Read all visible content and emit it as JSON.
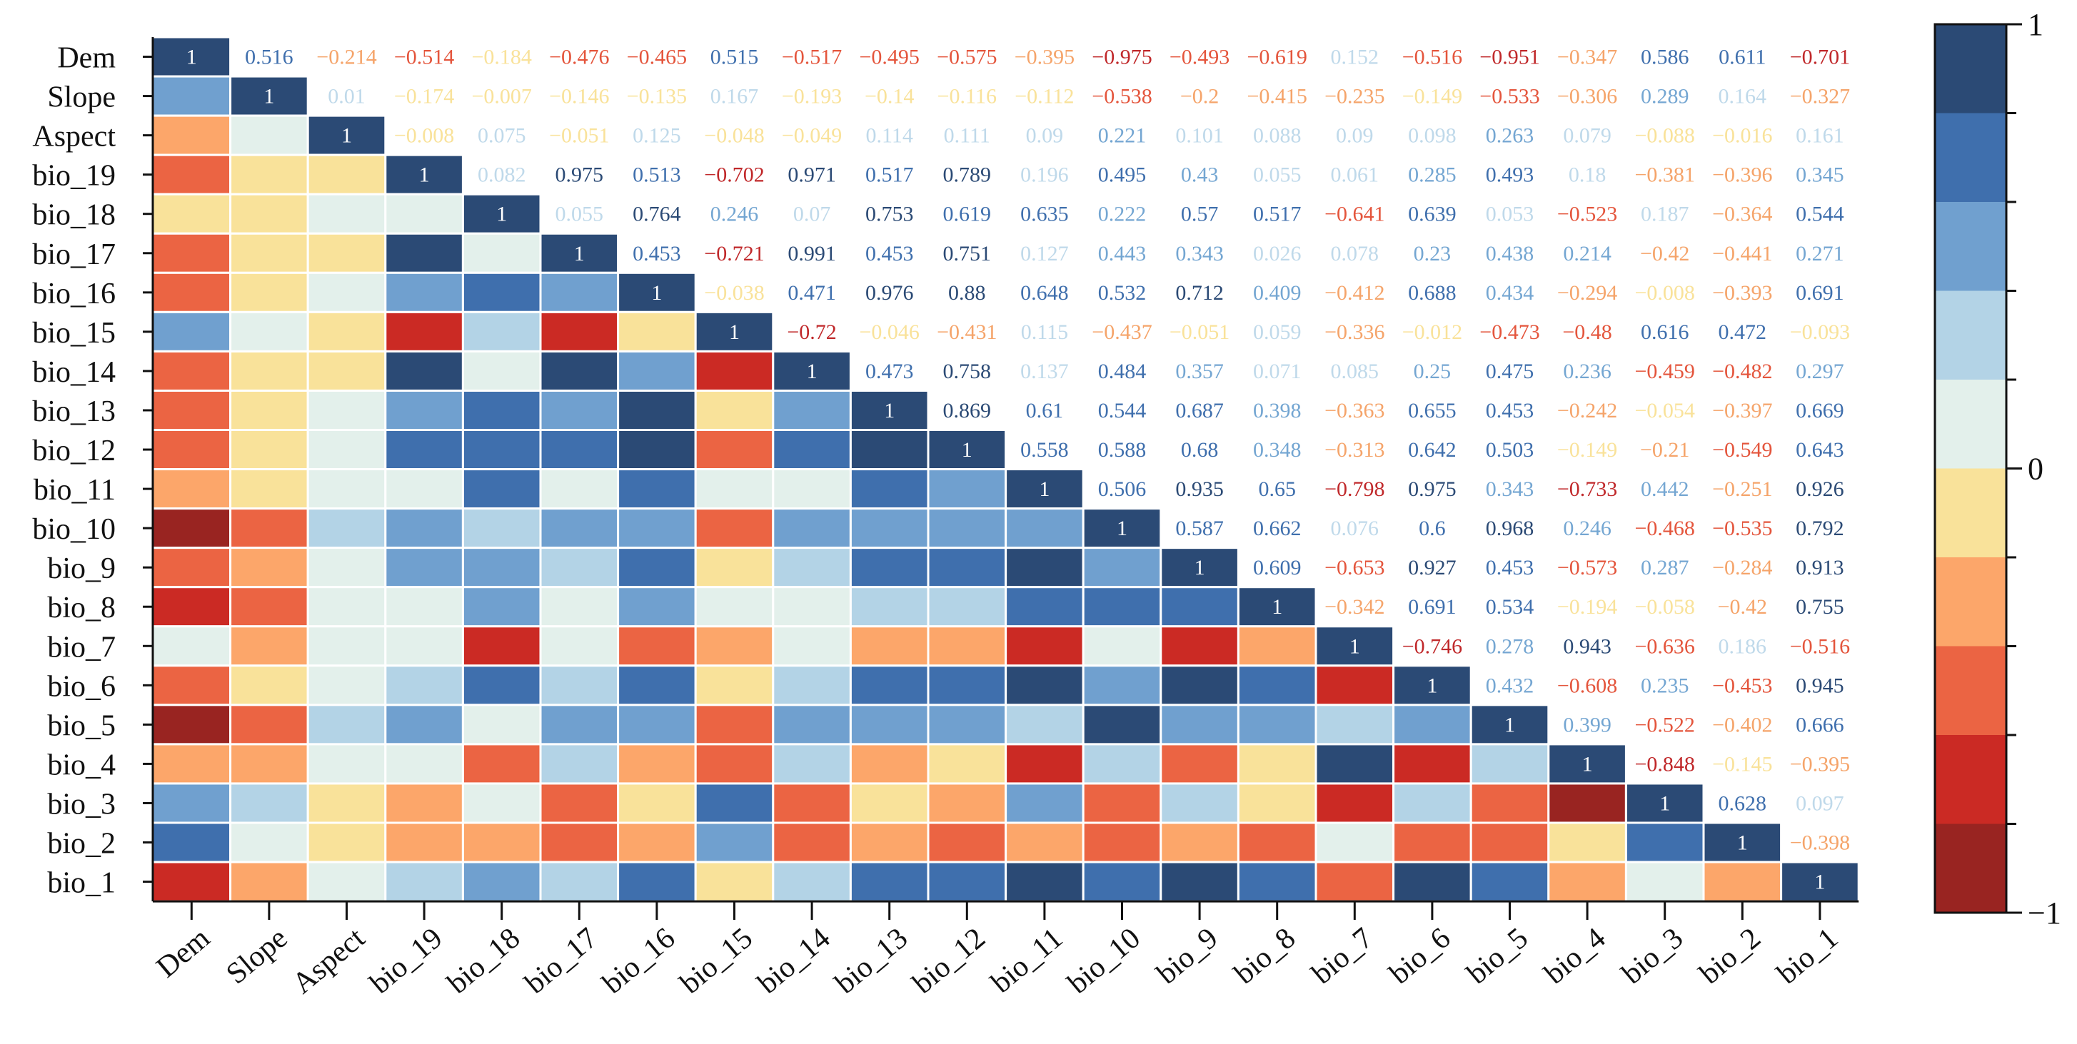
{
  "chart_data": {
    "type": "heatmap",
    "title": "",
    "variables": [
      "Dem",
      "Slope",
      "Aspect",
      "bio_19",
      "bio_18",
      "bio_17",
      "bio_16",
      "bio_15",
      "bio_14",
      "bio_13",
      "bio_12",
      "bio_11",
      "bio_10",
      "bio_9",
      "bio_8",
      "bio_7",
      "bio_6",
      "bio_5",
      "bio_4",
      "bio_3",
      "bio_2",
      "bio_1"
    ],
    "y_labels": [
      "Dem",
      "Slope",
      "Aspect",
      "bio_19",
      "bio_18",
      "bio_17",
      "bio_16",
      "bio_15",
      "bio_14",
      "bio_13",
      "bio_12",
      "bio_11",
      "bio_10",
      "bio_9",
      "bio_8",
      "bio_7",
      "bio_6",
      "bio_5",
      "bio_4",
      "bio_3",
      "bio_2",
      "bio_1"
    ],
    "x_labels": [
      "Dem",
      "Slope",
      "Aspect",
      "bio_19",
      "bio_18",
      "bio_17",
      "bio_16",
      "bio_15",
      "bio_14",
      "bio_13",
      "bio_12",
      "bio_11",
      "bio_10",
      "bio_9",
      "bio_8",
      "bio_7",
      "bio_6",
      "bio_5",
      "bio_4",
      "bio_3",
      "bio_2",
      "bio_1"
    ],
    "upper_triangle_text": [
      [
        "1",
        "0.516",
        "−0.214",
        "−0.514",
        "−0.184",
        "−0.476",
        "−0.465",
        "0.515",
        "−0.517",
        "−0.495",
        "−0.575",
        "−0.395",
        "−0.975",
        "−0.493",
        "−0.619",
        "0.152",
        "−0.516",
        "−0.951",
        "−0.347",
        "0.586",
        "0.611",
        "−0.701"
      ],
      [
        "1",
        "0.01",
        "−0.174",
        "−0.007",
        "−0.146",
        "−0.135",
        "0.167",
        "−0.193",
        "−0.14",
        "−0.116",
        "−0.112",
        "−0.538",
        "−0.2",
        "−0.415",
        "−0.235",
        "−0.149",
        "−0.533",
        "−0.306",
        "0.289",
        "0.164",
        "−0.327"
      ],
      [
        "1",
        "−0.008",
        "0.075",
        "−0.051",
        "0.125",
        "−0.048",
        "−0.049",
        "0.114",
        "0.111",
        "0.09",
        "0.221",
        "0.101",
        "0.088",
        "0.09",
        "0.098",
        "0.263",
        "0.079",
        "−0.088",
        "−0.016",
        "0.161"
      ],
      [
        "1",
        "0.082",
        "0.975",
        "0.513",
        "−0.702",
        "0.971",
        "0.517",
        "0.789",
        "0.196",
        "0.495",
        "0.43",
        "0.055",
        "0.061",
        "0.285",
        "0.493",
        "0.18",
        "−0.381",
        "−0.396",
        "0.345"
      ],
      [
        "1",
        "0.055",
        "0.764",
        "0.246",
        "0.07",
        "0.753",
        "0.619",
        "0.635",
        "0.222",
        "0.57",
        "0.517",
        "−0.641",
        "0.639",
        "0.053",
        "−0.523",
        "0.187",
        "−0.364",
        "0.544"
      ],
      [
        "1",
        "0.453",
        "−0.721",
        "0.991",
        "0.453",
        "0.751",
        "0.127",
        "0.443",
        "0.343",
        "0.026",
        "0.078",
        "0.23",
        "0.438",
        "0.214",
        "−0.42",
        "−0.441",
        "0.271"
      ],
      [
        "1",
        "−0.038",
        "0.471",
        "0.976",
        "0.88",
        "0.648",
        "0.532",
        "0.712",
        "0.409",
        "−0.412",
        "0.688",
        "0.434",
        "−0.294",
        "−0.008",
        "−0.393",
        "0.691"
      ],
      [
        "1",
        "−0.72",
        "−0.046",
        "−0.431",
        "0.115",
        "−0.437",
        "−0.051",
        "0.059",
        "−0.336",
        "−0.012",
        "−0.473",
        "−0.48",
        "0.616",
        "0.472",
        "−0.093"
      ],
      [
        "1",
        "0.473",
        "0.758",
        "0.137",
        "0.484",
        "0.357",
        "0.071",
        "0.085",
        "0.25",
        "0.475",
        "0.236",
        "−0.459",
        "−0.482",
        "0.297"
      ],
      [
        "1",
        "0.869",
        "0.61",
        "0.544",
        "0.687",
        "0.398",
        "−0.363",
        "0.655",
        "0.453",
        "−0.242",
        "−0.054",
        "−0.397",
        "0.669"
      ],
      [
        "1",
        "0.558",
        "0.588",
        "0.68",
        "0.348",
        "−0.313",
        "0.642",
        "0.503",
        "−0.149",
        "−0.21",
        "−0.549",
        "0.643"
      ],
      [
        "1",
        "0.506",
        "0.935",
        "0.65",
        "−0.798",
        "0.975",
        "0.343",
        "−0.733",
        "0.442",
        "−0.251",
        "0.926"
      ],
      [
        "1",
        "0.587",
        "0.662",
        "0.076",
        "0.6",
        "0.968",
        "0.246",
        "−0.468",
        "−0.535",
        "0.792"
      ],
      [
        "1",
        "0.609",
        "−0.653",
        "0.927",
        "0.453",
        "−0.573",
        "0.287",
        "−0.284",
        "0.913"
      ],
      [
        "1",
        "−0.342",
        "0.691",
        "0.534",
        "−0.194",
        "−0.058",
        "−0.42",
        "0.755"
      ],
      [
        "1",
        "−0.746",
        "0.278",
        "0.943",
        "−0.636",
        "0.186",
        "−0.516"
      ],
      [
        "1",
        "0.432",
        "−0.608",
        "0.235",
        "−0.453",
        "0.945"
      ],
      [
        "1",
        "0.399",
        "−0.522",
        "−0.402",
        "0.666"
      ],
      [
        "1",
        "−0.848",
        "−0.145",
        "−0.395"
      ],
      [
        "1",
        "0.628",
        "0.097"
      ],
      [
        "1",
        "−0.398"
      ],
      [
        "1"
      ]
    ],
    "colorbar": {
      "range": [
        -1,
        1
      ],
      "ticks": [
        1,
        0,
        -1
      ],
      "tick_labels": [
        "1",
        "0",
        "−1"
      ],
      "colors": [
        "#2B4A75",
        "#3F6FAD",
        "#70A0CF",
        "#B3D3E6",
        "#E3F0EB",
        "#F9E29A",
        "#FCA66A",
        "#EB6443",
        "#CB2A24",
        "#992421"
      ]
    }
  }
}
